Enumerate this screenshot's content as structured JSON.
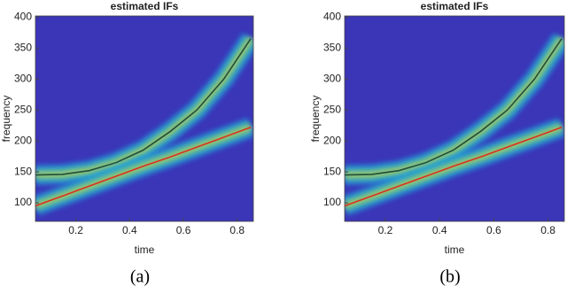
{
  "chart_data": [
    {
      "type": "line",
      "title": "estimated IFs",
      "xlabel": "time",
      "ylabel": "frequency",
      "caption": "(a)",
      "x": [
        0.05,
        0.15,
        0.25,
        0.35,
        0.45,
        0.55,
        0.65,
        0.75,
        0.85
      ],
      "series": [
        {
          "color": "#1e4d3a",
          "values": [
            145,
            146,
            152,
            165,
            185,
            215,
            250,
            300,
            365
          ]
        },
        {
          "color": "#d8321e",
          "values": [
            95,
            111,
            127,
            143,
            159,
            174,
            190,
            206,
            222
          ]
        }
      ],
      "xlim": [
        0.05,
        0.86
      ],
      "ylim": [
        70,
        402
      ],
      "xticks": [
        0.2,
        0.4,
        0.6,
        0.8
      ],
      "yticks": [
        100,
        150,
        200,
        250,
        300,
        350,
        400
      ],
      "background": "#3b35b8"
    },
    {
      "type": "line",
      "title": "estimated IFs",
      "xlabel": "time",
      "ylabel": "frequency",
      "caption": "(b)",
      "x": [
        0.05,
        0.15,
        0.25,
        0.35,
        0.45,
        0.55,
        0.65,
        0.75,
        0.85
      ],
      "series": [
        {
          "color": "#1e4d3a",
          "values": [
            145,
            146,
            152,
            165,
            185,
            215,
            250,
            300,
            365
          ]
        },
        {
          "color": "#d8321e",
          "values": [
            95,
            111,
            127,
            143,
            159,
            174,
            190,
            206,
            222
          ]
        }
      ],
      "xlim": [
        0.05,
        0.86
      ],
      "ylim": [
        70,
        402
      ],
      "xticks": [
        0.2,
        0.4,
        0.6,
        0.8
      ],
      "yticks": [
        100,
        150,
        200,
        250,
        300,
        350,
        400
      ],
      "background": "#3b35b8"
    }
  ]
}
